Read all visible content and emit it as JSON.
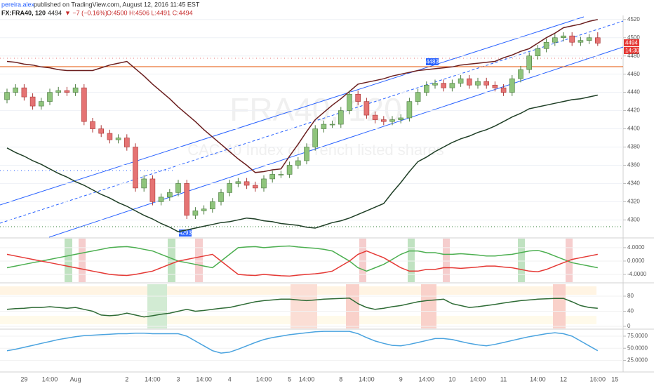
{
  "header": {
    "author": "pereira.alex",
    "published": " published on TradingView.com, August 12, 2016 11:45 EST",
    "symbol": "FX:FRA40, 120",
    "last": "4494",
    "change": "▼ −7 (−0.16%)",
    "ohlc": "O:4500 H:4506 L:4491 C:4494",
    "watermark": "FRA40, 120",
    "watermark_sub": "CAC 40 Index of French listed shares",
    "annotations": [
      "4483",
      "4293"
    ],
    "countdown": "14:30"
  },
  "chart_data": [
    {
      "type": "candlestick",
      "up_color": "#8fc47c",
      "down_color": "#e57373",
      "grid": true,
      "ylim": [
        4281,
        4526
      ],
      "yticks": [
        4300,
        4320,
        4340,
        4360,
        4380,
        4400,
        4420,
        4440,
        4460,
        4480,
        4500,
        4520
      ],
      "categories": [
        null,
        null,
        "29",
        null,
        null,
        "14:00",
        null,
        null,
        "Aug",
        null,
        null,
        null,
        null,
        null,
        "2",
        null,
        null,
        "14:00",
        null,
        null,
        "3",
        null,
        null,
        "14:00",
        null,
        null,
        "4",
        null,
        null,
        null,
        "14:00",
        null,
        null,
        "5",
        null,
        "14:00",
        null,
        null,
        null,
        "8",
        null,
        null,
        "14:00",
        null,
        null,
        null,
        "9",
        null,
        null,
        "14:00",
        null,
        null,
        "10",
        null,
        null,
        "14:00",
        null,
        null,
        "11",
        null,
        null,
        null,
        "14:00",
        null,
        null,
        "12",
        null,
        null,
        null,
        "16:00",
        null,
        "15"
      ],
      "open": [
        4432,
        4440,
        4445,
        4435,
        4425,
        4430,
        4440,
        4442,
        4440,
        4445,
        4408,
        4400,
        4395,
        4388,
        4390,
        4380,
        4335,
        4345,
        4320,
        4325,
        4330,
        4340,
        4305,
        4310,
        4312,
        4320,
        4330,
        4340,
        4342,
        4338,
        4335,
        4345,
        4350,
        4350,
        4360,
        4365,
        4380,
        4400,
        4405,
        4405,
        4420,
        4438,
        4430,
        4415,
        4410,
        4408,
        4410,
        4412,
        4430,
        4440,
        4448,
        4450,
        4445,
        4450,
        4455,
        4448,
        4452,
        4448,
        4445,
        4440,
        4455,
        4465,
        4480,
        4488,
        4495,
        4500,
        4502,
        4495,
        4497,
        4500,
        null,
        null
      ],
      "high": [
        4444,
        4449,
        4449,
        4439,
        4434,
        4444,
        4446,
        4446,
        4449,
        4449,
        4412,
        4404,
        4399,
        4394,
        4394,
        4384,
        4349,
        4349,
        4329,
        4334,
        4344,
        4344,
        4314,
        4316,
        4324,
        4334,
        4344,
        4346,
        4346,
        4342,
        4349,
        4354,
        4354,
        4364,
        4369,
        4384,
        4404,
        4409,
        4409,
        4424,
        4442,
        4442,
        4434,
        4419,
        4414,
        4414,
        4416,
        4434,
        4444,
        4452,
        4454,
        4454,
        4454,
        4459,
        4459,
        4456,
        4456,
        4452,
        4449,
        4459,
        4469,
        4484,
        4492,
        4499,
        4504,
        4506,
        4506,
        4501,
        4504,
        4506,
        null,
        null
      ],
      "low": [
        4428,
        4436,
        4431,
        4421,
        4421,
        4426,
        4436,
        4436,
        4436,
        4404,
        4396,
        4391,
        4384,
        4384,
        4376,
        4331,
        4331,
        4316,
        4316,
        4321,
        4326,
        4301,
        4301,
        4306,
        4308,
        4316,
        4326,
        4336,
        4334,
        4331,
        4331,
        4341,
        4346,
        4346,
        4356,
        4361,
        4376,
        4396,
        4401,
        4401,
        4416,
        4426,
        4411,
        4406,
        4404,
        4404,
        4406,
        4408,
        4426,
        4436,
        4444,
        4441,
        4441,
        4446,
        4444,
        4444,
        4444,
        4441,
        4436,
        4436,
        4451,
        4461,
        4476,
        4484,
        4491,
        4496,
        4491,
        4491,
        4493,
        4491,
        null,
        null
      ],
      "close": [
        4440,
        4445,
        4435,
        4425,
        4430,
        4440,
        4442,
        4440,
        4445,
        4408,
        4400,
        4395,
        4388,
        4390,
        4380,
        4335,
        4345,
        4320,
        4325,
        4330,
        4340,
        4305,
        4310,
        4312,
        4320,
        4330,
        4340,
        4342,
        4338,
        4335,
        4345,
        4350,
        4350,
        4360,
        4365,
        4380,
        4400,
        4405,
        4405,
        4420,
        4438,
        4430,
        4415,
        4410,
        4408,
        4410,
        4412,
        4430,
        4440,
        4448,
        4450,
        4445,
        4450,
        4455,
        4448,
        4452,
        4448,
        4445,
        4440,
        4455,
        4465,
        4480,
        4488,
        4495,
        4500,
        4502,
        4495,
        4497,
        4500,
        4494,
        null,
        null
      ],
      "series": [
        {
          "color": "#6b1f1f",
          "values": [
            4474,
            4473,
            4471,
            4470,
            4468,
            4467,
            4465,
            4464,
            4464,
            4464,
            4464,
            4467,
            4470,
            4472,
            4474,
            4466,
            4458,
            4449,
            4441,
            4433,
            4424,
            4416,
            4408,
            4399,
            4391,
            4383,
            4375,
            4367,
            4360,
            4352,
            4353,
            4355,
            4356,
            4370,
            4383,
            4397,
            4410,
            4418,
            4426,
            4433,
            4441,
            4449,
            4451,
            4453,
            4455,
            4458,
            4460,
            4462,
            4464,
            4465,
            4466,
            4467,
            4468,
            4470,
            4471,
            4472,
            4473,
            4474,
            4478,
            4481,
            4485,
            4488,
            4494,
            4500,
            4505,
            4511,
            4513,
            4515,
            4518,
            4520,
            null,
            null
          ]
        },
        {
          "color": "#1f3f26",
          "values": [
            4379,
            4374,
            4370,
            4365,
            4361,
            4356,
            4351,
            4347,
            4342,
            4338,
            4333,
            4328,
            4324,
            4319,
            4315,
            4310,
            4305,
            4301,
            4296,
            4292,
            4287,
            4289,
            4291,
            4293,
            4295,
            4297,
            4298,
            4300,
            4302,
            4301,
            4299,
            4298,
            4296,
            4295,
            4294,
            4292,
            4291,
            4294,
            4297,
            4299,
            4302,
            4306,
            4310,
            4314,
            4318,
            4330,
            4341,
            4353,
            4364,
            4369,
            4375,
            4380,
            4385,
            4389,
            4392,
            4396,
            4399,
            4403,
            4408,
            4413,
            4417,
            4422,
            4424,
            4426,
            4428,
            4430,
            4432,
            4433,
            4435,
            4437,
            null,
            null
          ]
        }
      ]
    },
    {
      "type": "line",
      "ylim": [
        -6.3,
        6.7
      ],
      "yticks": [
        {
          "value": 4,
          "label": "4.0000"
        },
        {
          "value": 0,
          "label": "0.0000"
        },
        {
          "value": -4,
          "label": "-4.0000"
        }
      ],
      "series": [
        {
          "color": "#4caf50",
          "values": [
            -2,
            -1.5,
            -1,
            -0.5,
            0,
            0.5,
            1,
            1.5,
            2,
            2.5,
            3,
            3.5,
            4,
            4.2,
            4.3,
            4,
            3.5,
            3,
            2,
            1,
            0,
            -0.5,
            -1,
            -1.5,
            -2,
            0,
            2,
            4,
            4.2,
            4.3,
            4,
            4.2,
            4.4,
            4.5,
            4.2,
            4,
            3.8,
            3.5,
            3,
            1.5,
            0,
            -2,
            -3,
            -2,
            -1,
            0.5,
            2,
            3,
            3,
            2.5,
            2.5,
            2,
            2,
            2.2,
            2,
            1.8,
            1.5,
            1.5,
            1.8,
            2,
            2.5,
            3,
            3.2,
            2.5,
            1.5,
            0.5,
            -0.5,
            -1,
            -1.5,
            -2,
            null,
            null
          ]
        },
        {
          "color": "#e53935",
          "values": [
            2,
            1.5,
            1,
            0.5,
            0,
            -0.5,
            -1,
            -1.5,
            -2,
            -2.5,
            -3,
            -3.5,
            -4,
            -4.2,
            -4.3,
            -4,
            -3.5,
            -3,
            -2,
            -1,
            0,
            0.5,
            1,
            1.5,
            2,
            0,
            -2,
            -4,
            -4.2,
            -4.3,
            -4,
            -4.2,
            -4.4,
            -4.5,
            -4.2,
            -4,
            -3.8,
            -3.5,
            -3,
            -1.5,
            0,
            2,
            3,
            2,
            1,
            -0.5,
            -2,
            -3,
            -3,
            -2.5,
            -2.5,
            -2,
            -2,
            -2.2,
            -2,
            -1.8,
            -1.5,
            -1.5,
            -1.8,
            -2,
            -2.5,
            -3,
            -3.2,
            -2.5,
            -1.5,
            -0.5,
            0.5,
            1,
            1.5,
            2,
            null,
            null
          ]
        }
      ]
    },
    {
      "type": "line",
      "ylim": [
        -5.6,
        111.6
      ],
      "yticks": [
        80,
        40,
        0
      ],
      "series": [
        {
          "color": "#2e6b35",
          "values": [
            45,
            47,
            48,
            50,
            50,
            52,
            50,
            48,
            50,
            45,
            40,
            30,
            28,
            30,
            35,
            30,
            25,
            28,
            32,
            35,
            40,
            45,
            40,
            42,
            45,
            48,
            50,
            55,
            60,
            65,
            68,
            70,
            72,
            72,
            70,
            68,
            70,
            72,
            73,
            74,
            75,
            60,
            50,
            45,
            48,
            52,
            55,
            60,
            65,
            68,
            70,
            72,
            60,
            55,
            50,
            52,
            55,
            58,
            62,
            65,
            68,
            70,
            72,
            73,
            74,
            74,
            65,
            55,
            50,
            48,
            null,
            null
          ]
        }
      ]
    },
    {
      "type": "line",
      "ylim": [
        4,
        88
      ],
      "yticks": [
        {
          "value": 75,
          "label": "75.0000"
        },
        {
          "value": 50,
          "label": "50.0000"
        },
        {
          "value": 25,
          "label": "25.0000"
        }
      ],
      "series": [
        {
          "color": "#4aa3df",
          "values": [
            45,
            48,
            52,
            56,
            60,
            64,
            68,
            71,
            74,
            76,
            77,
            78,
            79,
            80,
            80,
            81,
            81,
            80,
            80,
            80,
            80,
            75,
            65,
            55,
            45,
            40,
            42,
            48,
            55,
            62,
            68,
            72,
            75,
            78,
            80,
            82,
            84,
            85,
            85,
            85,
            85,
            80,
            72,
            65,
            60,
            56,
            55,
            58,
            62,
            66,
            70,
            70,
            68,
            64,
            60,
            57,
            55,
            58,
            62,
            66,
            70,
            74,
            77,
            80,
            82,
            80,
            75,
            65,
            55,
            45,
            null,
            null
          ]
        }
      ]
    }
  ]
}
